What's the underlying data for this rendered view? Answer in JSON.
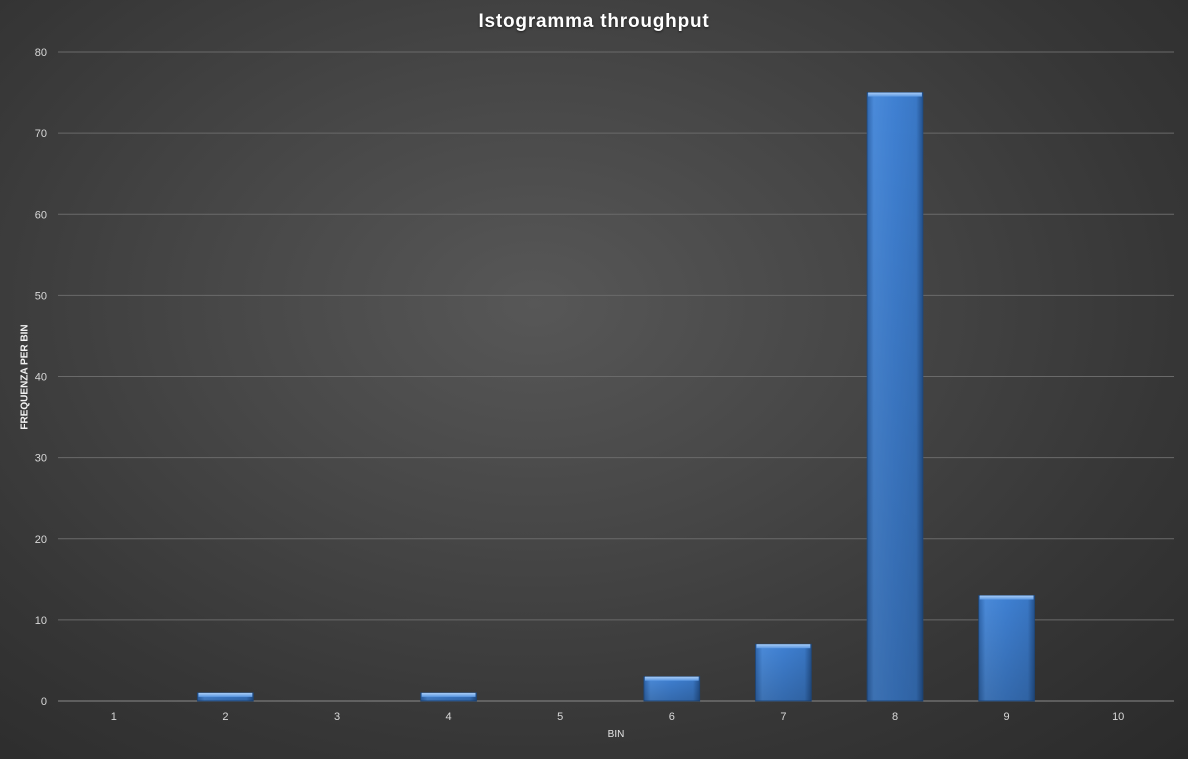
{
  "chart_data": {
    "type": "bar",
    "title": "Istogramma  throughput",
    "xlabel": "BIN",
    "ylabel": "FREQUENZA PER BIN",
    "categories": [
      "1",
      "2",
      "3",
      "4",
      "5",
      "6",
      "7",
      "8",
      "9",
      "10"
    ],
    "values": [
      0,
      1,
      0,
      1,
      0,
      3,
      7,
      75,
      13,
      0
    ],
    "y_ticks": [
      "0",
      "10",
      "20",
      "30",
      "40",
      "50",
      "60",
      "70",
      "80"
    ],
    "ylim": [
      0,
      80
    ],
    "grid": true,
    "legend": "none",
    "colors": {
      "bar": "#3f7fcf",
      "bar_light": "#5a9ae6",
      "bar_dark": "#2c5f9e",
      "gridline": "#6a6a6a",
      "text": "#d9d9d9"
    }
  }
}
